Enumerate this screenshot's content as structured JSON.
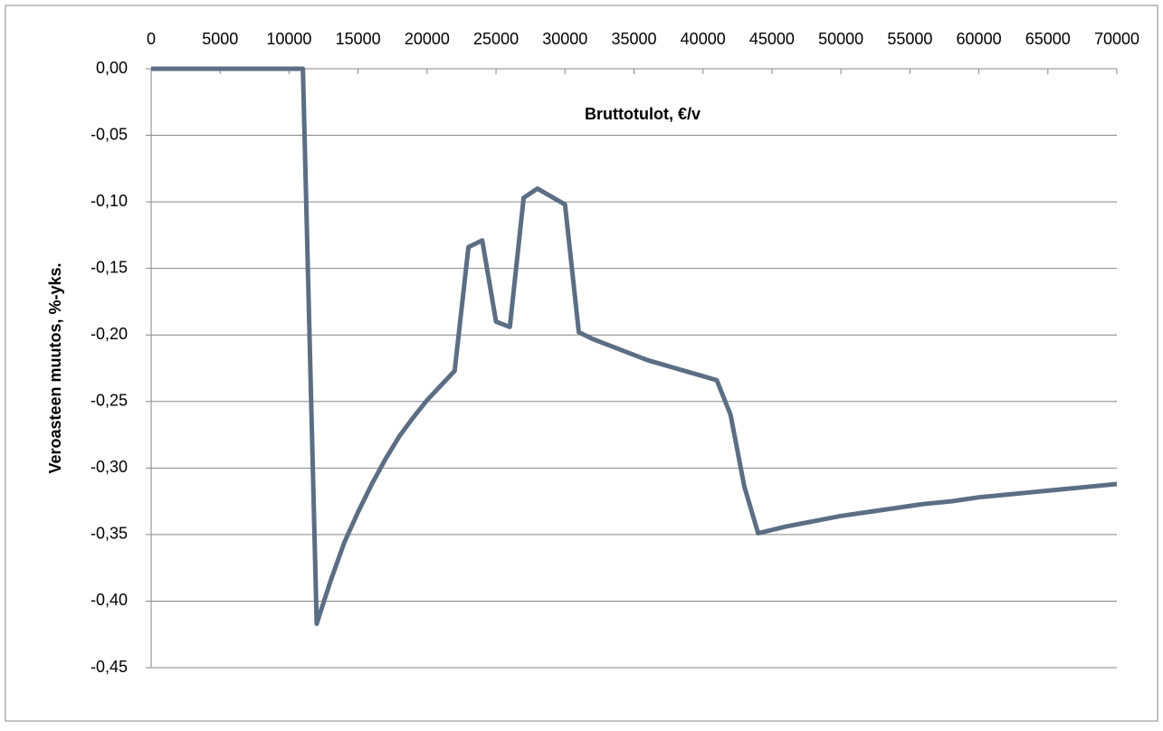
{
  "chart_data": {
    "type": "line",
    "x_label": "Bruttotulot, €/v",
    "y_label": "Veroasteen muutos, %-yks.",
    "xlim": [
      0,
      70000
    ],
    "xticks": [
      0,
      5000,
      10000,
      15000,
      20000,
      25000,
      30000,
      35000,
      40000,
      45000,
      50000,
      55000,
      60000,
      65000,
      70000
    ],
    "ylim": [
      -0.45,
      0
    ],
    "yticks": [
      {
        "value": 0,
        "label": "0,00"
      },
      {
        "value": -0.05,
        "label": "-0,05"
      },
      {
        "value": -0.1,
        "label": "-0,10"
      },
      {
        "value": -0.15,
        "label": "-0,15"
      },
      {
        "value": -0.2,
        "label": "-0,20"
      },
      {
        "value": -0.25,
        "label": "-0,25"
      },
      {
        "value": -0.3,
        "label": "-0,30"
      },
      {
        "value": -0.35,
        "label": "-0,35"
      },
      {
        "value": -0.4,
        "label": "-0,40"
      },
      {
        "value": -0.45,
        "label": "-0,45"
      }
    ],
    "grid": true,
    "x": [
      0,
      11000,
      12000,
      13000,
      14000,
      15000,
      16000,
      17000,
      18000,
      19000,
      20000,
      21000,
      22000,
      23000,
      24000,
      25000,
      26000,
      27000,
      28000,
      30000,
      31000,
      32000,
      33000,
      34000,
      35000,
      36000,
      37000,
      38000,
      39000,
      40000,
      41000,
      42000,
      43000,
      44000,
      46000,
      48000,
      50000,
      52000,
      54000,
      56000,
      58000,
      60000,
      62000,
      64000,
      66000,
      68000,
      70000
    ],
    "series": [
      {
        "color": "#5b6e83",
        "values": [
          0,
          0,
          -0.417,
          -0.385,
          -0.356,
          -0.333,
          -0.312,
          -0.293,
          -0.276,
          -0.262,
          -0.249,
          -0.238,
          -0.227,
          -0.134,
          -0.129,
          -0.19,
          -0.194,
          -0.097,
          -0.09,
          -0.102,
          -0.198,
          -0.203,
          -0.207,
          -0.211,
          -0.215,
          -0.219,
          -0.222,
          -0.225,
          -0.228,
          -0.231,
          -0.234,
          -0.26,
          -0.314,
          -0.349,
          -0.344,
          -0.34,
          -0.336,
          -0.333,
          -0.33,
          -0.327,
          -0.325,
          -0.322,
          -0.32,
          -0.318,
          -0.316,
          -0.314,
          -0.312
        ]
      }
    ]
  }
}
